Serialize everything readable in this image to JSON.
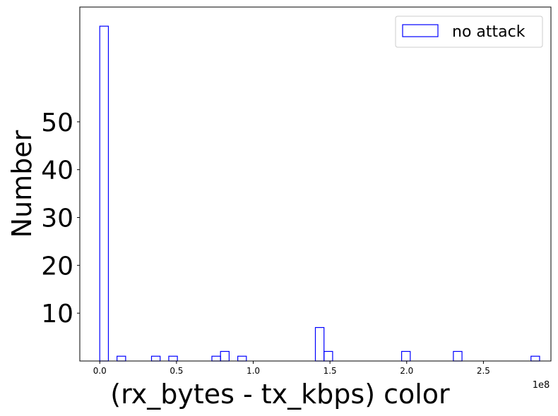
{
  "chart_data": {
    "type": "bar",
    "subtype": "histogram-step",
    "xlabel": "(rx_bytes - tx_kbps) color",
    "ylabel": "Number",
    "x_offset_label": "1e8",
    "x_scale": 100000000,
    "xlim": [
      -0.13,
      2.94
    ],
    "ylim": [
      0,
      74
    ],
    "x_ticks": [
      {
        "value": 0.0,
        "label": "0.0"
      },
      {
        "value": 0.5,
        "label": "0.5"
      },
      {
        "value": 1.0,
        "label": "1.0"
      },
      {
        "value": 1.5,
        "label": "1.5"
      },
      {
        "value": 2.0,
        "label": "2.0"
      },
      {
        "value": 2.5,
        "label": "2.5"
      }
    ],
    "y_ticks": [
      {
        "value": 10,
        "label": "10"
      },
      {
        "value": 20,
        "label": "20"
      },
      {
        "value": 30,
        "label": "30"
      },
      {
        "value": 40,
        "label": "40"
      },
      {
        "value": 50,
        "label": "50"
      }
    ],
    "legend": {
      "placement": "top-right",
      "entries": [
        "no attack"
      ]
    },
    "series": [
      {
        "name": "no attack",
        "color": "#0000ff",
        "bin_start": 0.0,
        "bin_width": 0.0562,
        "counts": [
          70,
          0,
          1,
          0,
          0,
          0,
          1,
          0,
          1,
          0,
          0,
          0,
          0,
          1,
          2,
          0,
          1,
          0,
          0,
          0,
          0,
          0,
          0,
          0,
          0,
          7,
          2,
          0,
          0,
          0,
          0,
          0,
          0,
          0,
          0,
          2,
          0,
          0,
          0,
          0,
          0,
          2,
          0,
          0,
          0,
          0,
          0,
          0,
          0,
          0,
          1
        ]
      }
    ]
  }
}
